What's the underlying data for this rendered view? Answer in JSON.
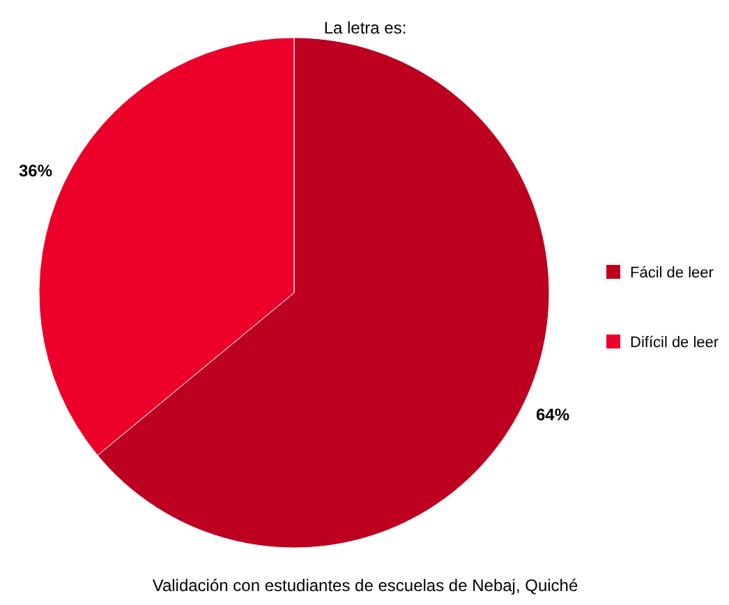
{
  "chart_data": {
    "type": "pie",
    "title": "La letra es:",
    "categories": [
      "Fácil de leer",
      "Difícil de leer"
    ],
    "values": [
      64,
      36
    ],
    "colors": [
      "#bd0020",
      "#ec0029"
    ],
    "value_labels": [
      "64%",
      "36%"
    ],
    "legend": "right",
    "annotations": [
      "Validación con estudiantes de escuelas de Nebaj, Quiché"
    ]
  }
}
